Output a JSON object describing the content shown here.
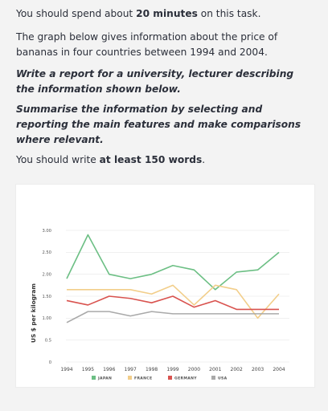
{
  "task": {
    "line1_pre": "You should spend about ",
    "line1_bold": "20 minutes",
    "line1_post": " on this task.",
    "desc": "The graph below gives information about the price of bananas in four countries between 1994 and 2004.",
    "instruction1": "Write a report for a university, lecturer describing the information shown below.",
    "instruction2": "Summarise the information by selecting and reporting the main features and make comparisons where relevant.",
    "line_last_pre": "You should write ",
    "line_last_bold": "at least 150 words",
    "line_last_post": "."
  },
  "chart_data": {
    "type": "line",
    "title": "",
    "xlabel": "",
    "ylabel": "US $ per kilogram",
    "x": [
      "1994",
      "1995",
      "1996",
      "1997",
      "1998",
      "1999",
      "2000",
      "2001",
      "2002",
      "2003",
      "2004"
    ],
    "ylim": [
      0,
      3.0
    ],
    "yticks": [
      "0",
      "0.5",
      "1.00",
      "1.50",
      "2.00",
      "2.50",
      "3.00"
    ],
    "yticks_values": [
      0,
      0.5,
      1.0,
      1.5,
      2.0,
      2.5,
      3.0
    ],
    "grid": true,
    "legend_position": "bottom",
    "series": [
      {
        "name": "JAPAN",
        "color": "#6cbf84",
        "values": [
          1.9,
          2.9,
          2.0,
          1.9,
          2.0,
          2.2,
          2.1,
          1.65,
          2.05,
          2.1,
          2.5
        ]
      },
      {
        "name": "FRANCE",
        "color": "#f2ce8a",
        "values": [
          1.65,
          1.65,
          1.65,
          1.65,
          1.55,
          1.75,
          1.3,
          1.75,
          1.65,
          1.0,
          1.55
        ]
      },
      {
        "name": "GERMANY",
        "color": "#d9534f",
        "values": [
          1.4,
          1.3,
          1.5,
          1.45,
          1.35,
          1.5,
          1.25,
          1.4,
          1.2,
          1.2,
          1.2
        ]
      },
      {
        "name": "USA",
        "color": "#a9a9a9",
        "values": [
          0.9,
          1.15,
          1.15,
          1.05,
          1.15,
          1.1,
          1.1,
          1.1,
          1.1,
          1.1,
          1.1
        ]
      }
    ]
  }
}
